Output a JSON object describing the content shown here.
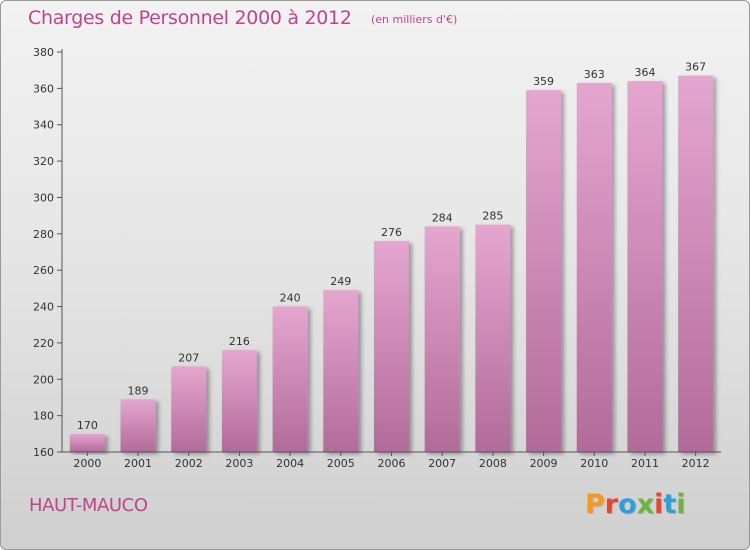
{
  "header": {
    "title": "Charges de Personnel 2000 à 2012",
    "subtitle": "(en milliers d'€)"
  },
  "footer": {
    "place": "HAUT-MAUCO",
    "logo_text": "Proxiti",
    "logo_colors": [
      "#f39a1b",
      "#e8452e",
      "#2e9fd8",
      "#6db33f",
      "#e8452e",
      "#2e9fd8",
      "#6db33f"
    ]
  },
  "colors": {
    "accent": "#c0448c",
    "bar_top": "#e4a6cf",
    "bar_bottom": "#b26b98",
    "axis": "#555555"
  },
  "chart_data": {
    "type": "bar",
    "title": "Charges de Personnel 2000 à 2012",
    "categories": [
      "2000",
      "2001",
      "2002",
      "2003",
      "2004",
      "2005",
      "2006",
      "2007",
      "2008",
      "2009",
      "2010",
      "2011",
      "2012"
    ],
    "values": [
      170,
      189,
      207,
      216,
      240,
      249,
      276,
      284,
      285,
      359,
      363,
      364,
      367
    ],
    "ylim": [
      160,
      380
    ],
    "yticks": [
      160,
      180,
      200,
      220,
      240,
      260,
      280,
      300,
      320,
      340,
      360,
      380
    ],
    "xlabel": "",
    "ylabel": "",
    "grid": false,
    "data_labels": true
  }
}
